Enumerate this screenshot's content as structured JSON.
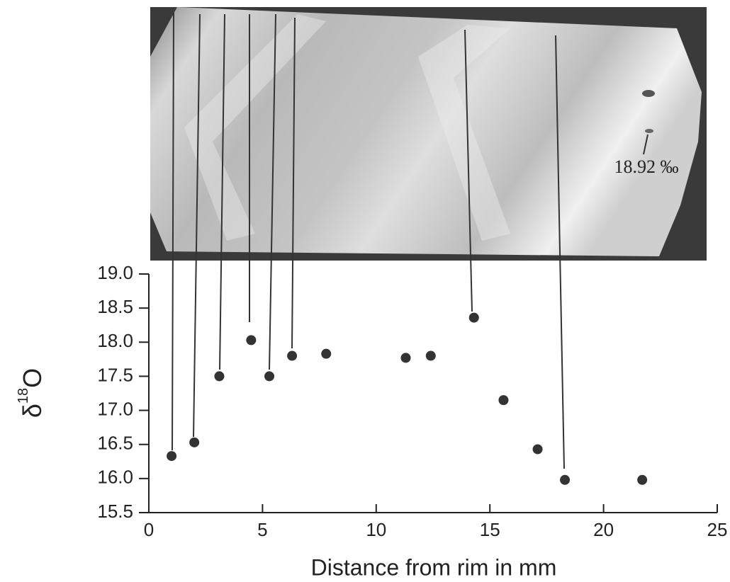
{
  "chart_data": {
    "type": "scatter",
    "x_label": "Distance from rim in mm",
    "y_label": [
      "δ",
      "18",
      "O"
    ],
    "annotation": "18.92 ‰",
    "color": "#333333",
    "x": [
      1.0,
      2.0,
      3.1,
      4.5,
      5.3,
      6.3,
      7.8,
      11.3,
      12.4,
      14.3,
      15.6,
      17.1,
      18.3,
      21.7
    ],
    "values": [
      16.33,
      16.53,
      17.5,
      18.03,
      17.5,
      17.8,
      17.83,
      17.77,
      17.8,
      18.36,
      17.15,
      16.43,
      15.98,
      15.98
    ],
    "xlim": [
      0,
      25
    ],
    "ylim": [
      15.5,
      19
    ],
    "xticks": [
      0,
      5,
      10,
      15,
      20,
      25
    ],
    "yticks": [
      {
        "value": 19,
        "label": "19.0"
      },
      18.5,
      {
        "value": 18,
        "label": "18.0"
      },
      17.5,
      {
        "value": 17,
        "label": "17.0"
      },
      16.5,
      {
        "value": 16,
        "label": "16.0"
      },
      15.5
    ]
  }
}
